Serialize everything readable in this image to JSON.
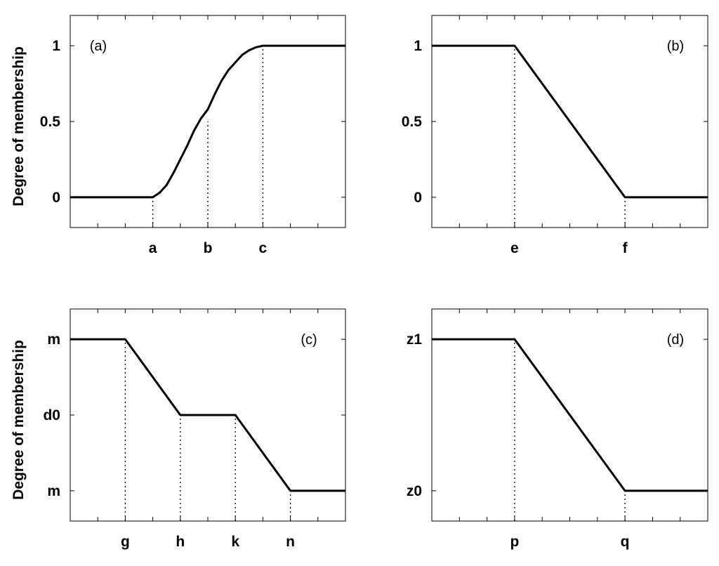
{
  "figure": {
    "ylabel": "Degree of membership"
  },
  "chart_data": [
    {
      "type": "line",
      "panel": "(a)",
      "xlabel": "",
      "ylabel": "Degree of membership",
      "xlim": [
        0,
        10
      ],
      "ylim": [
        -0.2,
        1.2
      ],
      "x_ticks": [
        {
          "x": 3,
          "label": "a"
        },
        {
          "x": 5,
          "label": "b"
        },
        {
          "x": 7,
          "label": "c"
        }
      ],
      "y_ticks": [
        {
          "y": 0,
          "label": "0"
        },
        {
          "y": 0.5,
          "label": "0.5"
        },
        {
          "y": 1,
          "label": "1"
        }
      ],
      "series": [
        {
          "values": [
            [
              0,
              0
            ],
            [
              3,
              0
            ],
            [
              3.25,
              0.03
            ],
            [
              3.5,
              0.08
            ],
            [
              3.75,
              0.16
            ],
            [
              4,
              0.25
            ],
            [
              4.25,
              0.34
            ],
            [
              4.5,
              0.44
            ],
            [
              4.75,
              0.52
            ],
            [
              5,
              0.58
            ],
            [
              5.25,
              0.68
            ],
            [
              5.5,
              0.77
            ],
            [
              5.75,
              0.84
            ],
            [
              6,
              0.89
            ],
            [
              6.25,
              0.94
            ],
            [
              6.5,
              0.97
            ],
            [
              6.75,
              0.99
            ],
            [
              7,
              1
            ],
            [
              10,
              1
            ]
          ]
        }
      ],
      "guides": [
        [
          3,
          0
        ],
        [
          5,
          0.5
        ],
        [
          7,
          1
        ]
      ]
    },
    {
      "type": "line",
      "panel": "(b)",
      "xlabel": "",
      "ylabel": "",
      "xlim": [
        0,
        10
      ],
      "ylim": [
        -0.2,
        1.2
      ],
      "x_ticks": [
        {
          "x": 3,
          "label": "e"
        },
        {
          "x": 7,
          "label": "f"
        }
      ],
      "y_ticks": [
        {
          "y": 0,
          "label": "0"
        },
        {
          "y": 0.5,
          "label": "0.5"
        },
        {
          "y": 1,
          "label": "1"
        }
      ],
      "series": [
        {
          "values": [
            [
              0,
              1
            ],
            [
              3,
              1
            ],
            [
              7,
              0
            ],
            [
              10,
              0
            ]
          ]
        }
      ],
      "guides": [
        [
          3,
          1
        ],
        [
          7,
          0
        ]
      ]
    },
    {
      "type": "line",
      "panel": "(c)",
      "xlabel": "",
      "ylabel": "Degree of membership",
      "xlim": [
        0,
        10
      ],
      "ylim": [
        -0.2,
        1.2
      ],
      "x_ticks": [
        {
          "x": 2,
          "label": "g"
        },
        {
          "x": 4,
          "label": "h"
        },
        {
          "x": 6,
          "label": "k"
        },
        {
          "x": 8,
          "label": "n"
        }
      ],
      "y_ticks": [
        {
          "y": 0,
          "label": "m"
        },
        {
          "y": 0.5,
          "label": "d0"
        },
        {
          "y": 1,
          "label": "m"
        }
      ],
      "series": [
        {
          "values": [
            [
              0,
              1
            ],
            [
              2,
              1
            ],
            [
              4,
              0.5
            ],
            [
              6,
              0.5
            ],
            [
              8,
              0
            ],
            [
              10,
              0
            ]
          ]
        }
      ],
      "guides": [
        [
          2,
          1
        ],
        [
          4,
          0.5
        ],
        [
          6,
          0.5
        ],
        [
          8,
          0
        ]
      ]
    },
    {
      "type": "line",
      "panel": "(d)",
      "xlabel": "",
      "ylabel": "",
      "xlim": [
        0,
        10
      ],
      "ylim": [
        -0.2,
        1.2
      ],
      "x_ticks": [
        {
          "x": 3,
          "label": "p"
        },
        {
          "x": 7,
          "label": "q"
        }
      ],
      "y_ticks": [
        {
          "y": 0,
          "label": "z0"
        },
        {
          "y": 1,
          "label": "z1"
        }
      ],
      "series": [
        {
          "values": [
            [
              0,
              1
            ],
            [
              3,
              1
            ],
            [
              7,
              0
            ],
            [
              10,
              0
            ]
          ]
        }
      ],
      "guides": [
        [
          3,
          1
        ],
        [
          7,
          0
        ]
      ]
    }
  ]
}
